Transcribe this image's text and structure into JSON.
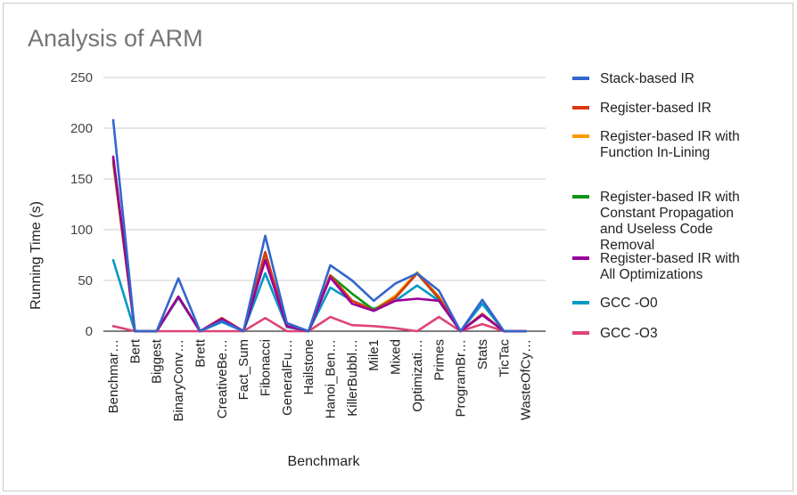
{
  "chart_data": {
    "type": "line",
    "title": "Analysis of ARM",
    "xlabel": "Benchmark",
    "ylabel": "Running Time (s)",
    "ylim": [
      0,
      250
    ],
    "yticks": [
      0,
      50,
      100,
      150,
      200,
      250
    ],
    "grid": true,
    "legend_position": "right",
    "categories": [
      "Benchmar…",
      "Bert",
      "Biggest",
      "BinaryConv…",
      "Brett",
      "CreativeBe…",
      "Fact_Sum",
      "Fibonacci",
      "GeneralFu…",
      "Hailstone",
      "Hanoi_Ben…",
      "KillerBubbl…",
      "Mile1",
      "Mixed",
      "Optimizati…",
      "Primes",
      "ProgramBr…",
      "Stats",
      "TicTac",
      "WasteOfCy…"
    ],
    "series": [
      {
        "name": "Stack-based IR",
        "color": "#3366cc",
        "values": [
          208,
          0,
          0,
          52,
          0,
          10,
          0,
          94,
          8,
          0,
          65,
          50,
          30,
          47,
          57,
          40,
          0,
          31,
          0,
          0
        ]
      },
      {
        "name": "Register-based IR",
        "color": "#dc3912",
        "values": [
          170,
          0,
          0,
          34,
          0,
          13,
          0,
          78,
          5,
          0,
          55,
          30,
          20,
          33,
          57,
          33,
          0,
          17,
          0,
          0
        ]
      },
      {
        "name": "Register-based IR with Function In-Lining",
        "color": "#ff9900",
        "values": [
          165,
          0,
          0,
          34,
          0,
          11,
          0,
          76,
          5,
          0,
          55,
          30,
          21,
          35,
          58,
          34,
          0,
          17,
          0,
          0
        ]
      },
      {
        "name": "Register-based IR with Constant Propagation and Useless Code Removal",
        "color": "#109618",
        "values": [
          168,
          0,
          0,
          34,
          0,
          12,
          0,
          77,
          5,
          0,
          55,
          37,
          21,
          33,
          57,
          32,
          0,
          16,
          0,
          0
        ]
      },
      {
        "name": "Register-based IR with All Optimizations",
        "color": "#990099",
        "values": [
          172,
          0,
          0,
          34,
          0,
          12,
          0,
          70,
          5,
          0,
          53,
          27,
          20,
          30,
          32,
          30,
          0,
          16,
          0,
          0
        ]
      },
      {
        "name": "GCC -O0",
        "color": "#0099c6",
        "values": [
          70,
          0,
          0,
          33,
          0,
          9,
          0,
          57,
          4,
          0,
          43,
          30,
          22,
          30,
          45,
          30,
          0,
          27,
          0,
          0
        ]
      },
      {
        "name": "GCC -O3",
        "color": "#dd4477",
        "values": [
          5,
          0,
          0,
          0,
          0,
          0,
          0,
          13,
          0,
          0,
          14,
          6,
          5,
          3,
          0,
          14,
          0,
          7,
          0,
          0
        ]
      }
    ]
  },
  "legend": {
    "lines": [
      [
        "Stack-based IR"
      ],
      [
        "Register-based IR"
      ],
      [
        "Register-based IR with",
        "Function In-Lining"
      ],
      [
        "Register-based IR with",
        "Constant Propagation",
        "and Useless Code",
        "Removal"
      ],
      [
        "Register-based IR with",
        "All Optimizations"
      ],
      [
        "GCC -O0"
      ],
      [
        "GCC -O3"
      ]
    ]
  }
}
